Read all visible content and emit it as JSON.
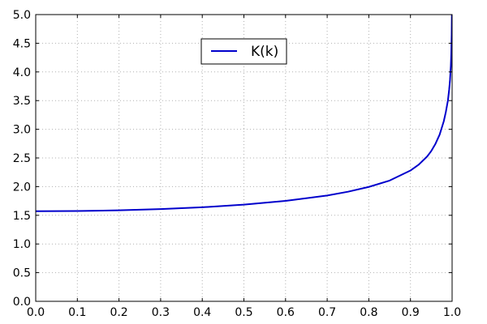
{
  "chart_data": {
    "type": "line",
    "title": "",
    "xlabel": "",
    "ylabel": "",
    "xlim": [
      0.0,
      1.0
    ],
    "ylim": [
      0.0,
      5.0
    ],
    "grid": true,
    "legend_position": "top-center",
    "x_ticks": [
      "0.0",
      "0.1",
      "0.2",
      "0.3",
      "0.4",
      "0.5",
      "0.6",
      "0.7",
      "0.8",
      "0.9",
      "1.0"
    ],
    "y_ticks": [
      "0.0",
      "0.5",
      "1.0",
      "1.5",
      "2.0",
      "2.5",
      "3.0",
      "3.5",
      "4.0",
      "4.5",
      "5.0"
    ],
    "series": [
      {
        "name": "K(k)",
        "color": "#0000cc",
        "x": [
          0.0,
          0.1,
          0.2,
          0.3,
          0.4,
          0.5,
          0.6,
          0.7,
          0.75,
          0.8,
          0.85,
          0.9,
          0.92,
          0.94,
          0.95,
          0.96,
          0.97,
          0.98,
          0.985,
          0.99,
          0.993,
          0.995,
          0.997,
          0.998,
          0.999,
          0.9995
        ],
        "y": [
          1.571,
          1.575,
          1.587,
          1.608,
          1.64,
          1.686,
          1.751,
          1.845,
          1.911,
          1.995,
          2.106,
          2.281,
          2.384,
          2.525,
          2.621,
          2.746,
          2.905,
          3.139,
          3.302,
          3.504,
          3.694,
          3.858,
          4.105,
          4.306,
          4.649,
          5.0
        ]
      }
    ]
  }
}
